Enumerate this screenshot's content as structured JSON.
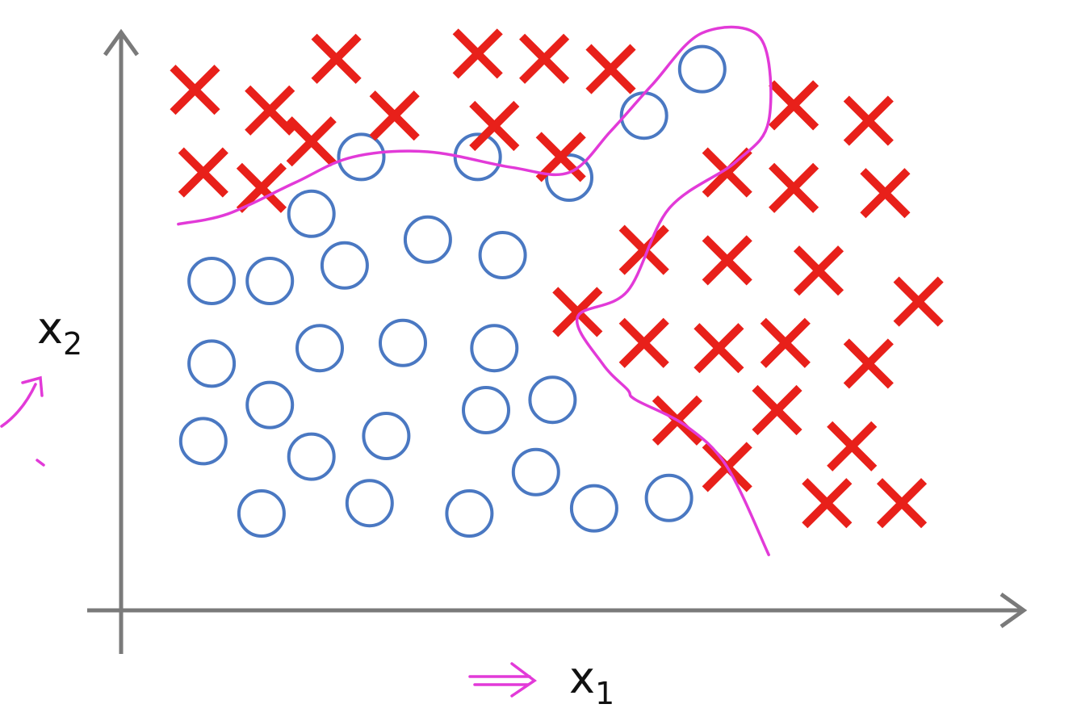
{
  "chart_data": {
    "type": "scatter",
    "title": "",
    "xlabel": "x",
    "xlabel_sub": "1",
    "ylabel": "x",
    "ylabel_sub": "2",
    "xlim": [
      0,
      10
    ],
    "ylim": [
      0,
      10
    ],
    "grid": false,
    "legend": "none",
    "series": [
      {
        "marker": "circle",
        "color": "#4a78c2",
        "points": [
          [
            6.6,
            9.6
          ],
          [
            5.9,
            8.7
          ],
          [
            2.5,
            7.9
          ],
          [
            3.9,
            7.9
          ],
          [
            5.0,
            7.5
          ],
          [
            1.9,
            6.8
          ],
          [
            3.3,
            6.3
          ],
          [
            4.2,
            6.0
          ],
          [
            2.3,
            5.8
          ],
          [
            0.7,
            5.5
          ],
          [
            1.4,
            5.5
          ],
          [
            2.0,
            4.2
          ],
          [
            3.0,
            4.3
          ],
          [
            4.1,
            4.2
          ],
          [
            0.7,
            3.9
          ],
          [
            1.4,
            3.1
          ],
          [
            4.0,
            3.0
          ],
          [
            4.8,
            3.2
          ],
          [
            2.8,
            2.5
          ],
          [
            0.6,
            2.4
          ],
          [
            1.9,
            2.1
          ],
          [
            4.6,
            1.8
          ],
          [
            1.3,
            1.0
          ],
          [
            2.6,
            1.2
          ],
          [
            3.8,
            1.0
          ],
          [
            5.3,
            1.1
          ],
          [
            6.2,
            1.3
          ]
        ]
      },
      {
        "marker": "x",
        "color": "#e8201a",
        "points": [
          [
            0.5,
            9.2
          ],
          [
            2.2,
            9.8
          ],
          [
            3.9,
            9.9
          ],
          [
            4.7,
            9.8
          ],
          [
            5.5,
            9.6
          ],
          [
            1.4,
            8.8
          ],
          [
            2.9,
            8.7
          ],
          [
            4.1,
            8.5
          ],
          [
            1.9,
            8.2
          ],
          [
            4.9,
            7.9
          ],
          [
            0.6,
            7.6
          ],
          [
            1.3,
            7.3
          ],
          [
            7.7,
            8.9
          ],
          [
            8.6,
            8.6
          ],
          [
            6.9,
            7.6
          ],
          [
            7.7,
            7.3
          ],
          [
            8.8,
            7.2
          ],
          [
            5.9,
            6.1
          ],
          [
            6.9,
            5.9
          ],
          [
            8.0,
            5.7
          ],
          [
            9.2,
            5.1
          ],
          [
            5.1,
            4.9
          ],
          [
            5.9,
            4.3
          ],
          [
            6.8,
            4.2
          ],
          [
            7.6,
            4.3
          ],
          [
            8.6,
            3.9
          ],
          [
            6.3,
            2.8
          ],
          [
            7.5,
            3.0
          ],
          [
            8.4,
            2.3
          ],
          [
            6.9,
            1.9
          ],
          [
            8.1,
            1.2
          ],
          [
            9.0,
            1.2
          ]
        ]
      }
    ],
    "decision_boundary": [
      [
        0.3,
        6.6
      ],
      [
        0.9,
        6.8
      ],
      [
        1.7,
        7.4
      ],
      [
        2.4,
        7.9
      ],
      [
        3.3,
        8.0
      ],
      [
        4.3,
        7.7
      ],
      [
        5.0,
        7.6
      ],
      [
        5.5,
        8.4
      ],
      [
        6.0,
        9.3
      ],
      [
        6.6,
        10.3
      ],
      [
        7.3,
        10.2
      ],
      [
        7.4,
        8.6
      ],
      [
        7.0,
        7.8
      ],
      [
        6.2,
        6.9
      ],
      [
        5.7,
        5.3
      ],
      [
        5.1,
        4.8
      ],
      [
        5.4,
        3.9
      ],
      [
        5.7,
        3.4
      ],
      [
        5.8,
        3.2
      ],
      [
        6.4,
        2.7
      ],
      [
        6.9,
        1.9
      ],
      [
        7.4,
        0.2
      ]
    ],
    "annotations": [
      {
        "kind": "arrow",
        "near": "x-axis-label",
        "color": "#e23ad8"
      },
      {
        "kind": "arrow",
        "near": "y-axis-label",
        "color": "#e23ad8"
      }
    ]
  }
}
